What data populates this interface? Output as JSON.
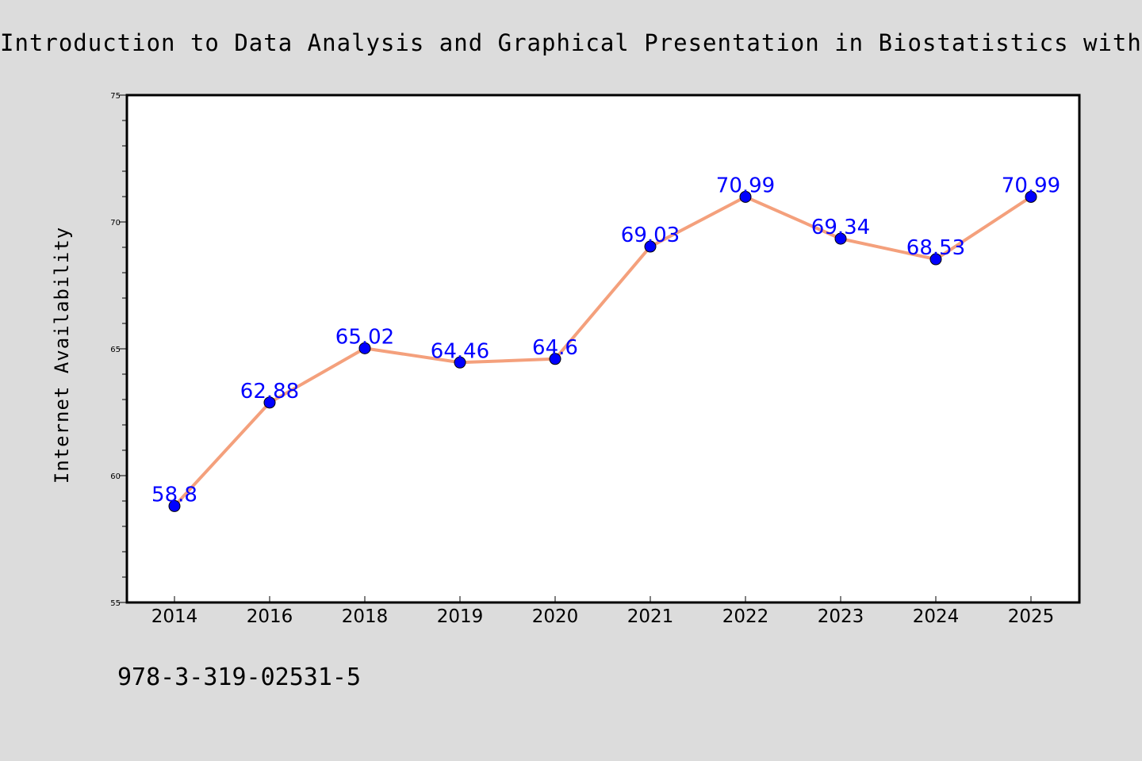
{
  "chart_data": {
    "type": "line",
    "title": "Introduction to Data Analysis and Graphical Presentation in Biostatistics with R",
    "xlabel": "",
    "ylabel": "Internet Availability",
    "categories": [
      "2014",
      "2016",
      "2018",
      "2019",
      "2020",
      "2021",
      "2022",
      "2023",
      "2024",
      "2025"
    ],
    "series": [
      {
        "values": [
          58.8,
          62.88,
          65.02,
          64.46,
          64.6,
          69.03,
          70.99,
          69.34,
          68.53,
          70.99
        ],
        "labels": [
          "58.8",
          "62.88",
          "65.02",
          "64.46",
          "64.6",
          "69.03",
          "70.99",
          "69.34",
          "68.53",
          "70.99"
        ],
        "line_color": "#f4a07c",
        "marker_color": "#0000ff"
      }
    ],
    "ylim": [
      55,
      75
    ],
    "yticks": [
      "55",
      "60",
      "65",
      "70",
      "75"
    ],
    "grid": false,
    "legend": "none",
    "label_color": "#0000ff",
    "background_color": "#dcdcdc",
    "plot_background_color": "#ffffff"
  },
  "footer": {
    "code": "978-3-319-02531-5"
  }
}
